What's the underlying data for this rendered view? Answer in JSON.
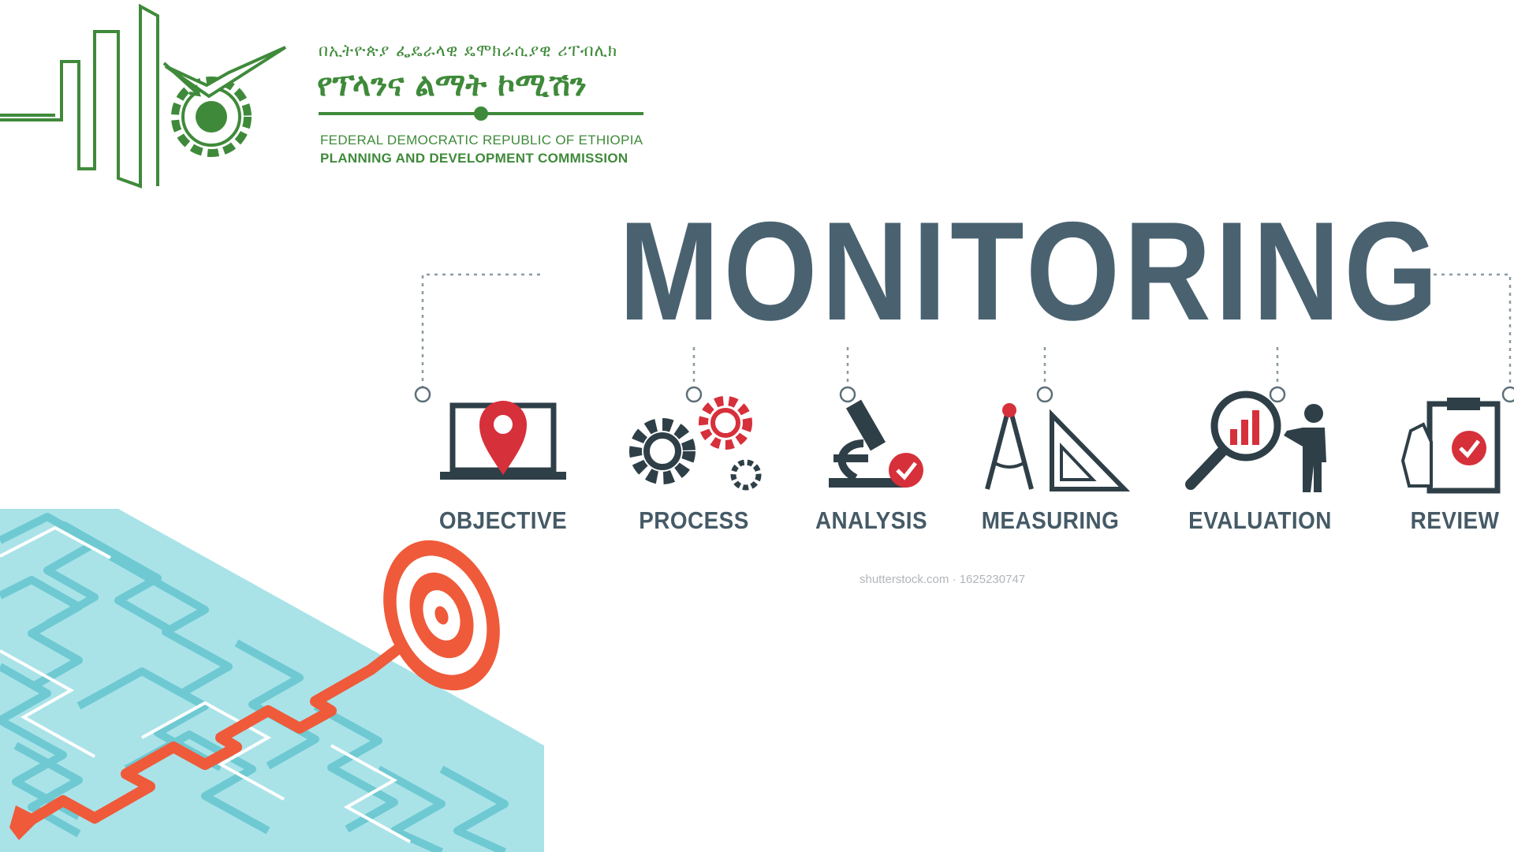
{
  "header": {
    "amharic_small": "በኢትዮጵያ ፌዴራላዊ ዴሞክራሲያዊ ሪፐብሊክ",
    "amharic_large": "የፕላንና ልማት ኮሚሽን",
    "english_line1": "FEDERAL DEMOCRATIC REPUBLIC OF ETHIOPIA",
    "english_line2": "PLANNING AND DEVELOPMENT COMMISSION",
    "brand_color": "#3f8a3a"
  },
  "banner": {
    "title": "MONITORING",
    "title_color": "#4a6270",
    "accent_color": "#d6303b",
    "steps": [
      {
        "label": "OBJECTIVE",
        "icon": "laptop-location-pin-icon"
      },
      {
        "label": "PROCESS",
        "icon": "gears-icon"
      },
      {
        "label": "ANALYSIS",
        "icon": "microscope-icon"
      },
      {
        "label": "MEASURING",
        "icon": "compass-set-square-icon"
      },
      {
        "label": "EVALUATION",
        "icon": "magnifier-person-icon"
      },
      {
        "label": "REVIEW",
        "icon": "clipboard-check-icon"
      }
    ],
    "watermark": "shutterstock.com · 1625230747"
  },
  "illustration": {
    "icon": "maze-target-arrow-icon",
    "maze_color": "#8fd9e0",
    "target_color": "#ef5a3a"
  }
}
